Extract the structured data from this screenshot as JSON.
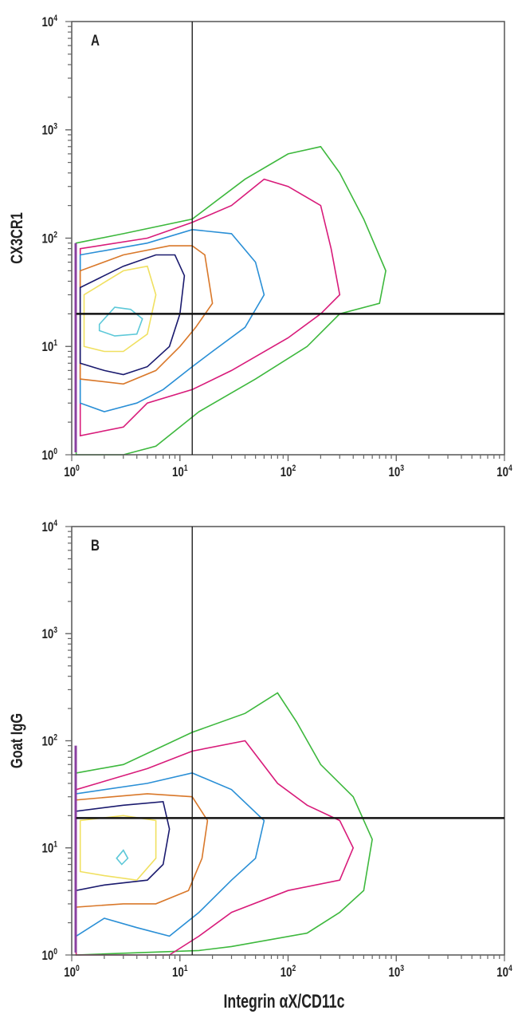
{
  "chart_data": [
    {
      "type": "contour",
      "panel_label": "A",
      "xlabel": "",
      "ylabel": "CX3CR1",
      "x_scale": "log",
      "y_scale": "log",
      "xlim": [
        1,
        10000
      ],
      "ylim": [
        1,
        10000
      ],
      "x_ticks": [
        {
          "base": "10",
          "exp": "0",
          "value": 1
        },
        {
          "base": "10",
          "exp": "1",
          "value": 10
        },
        {
          "base": "10",
          "exp": "2",
          "value": 100
        },
        {
          "base": "10",
          "exp": "3",
          "value": 1000
        },
        {
          "base": "10",
          "exp": "4",
          "value": 10000
        }
      ],
      "y_ticks": [
        {
          "base": "10",
          "exp": "0",
          "value": 1
        },
        {
          "base": "10",
          "exp": "1",
          "value": 10
        },
        {
          "base": "10",
          "exp": "2",
          "value": 100
        },
        {
          "base": "10",
          "exp": "3",
          "value": 1000
        },
        {
          "base": "10",
          "exp": "4",
          "value": 10000
        }
      ],
      "grid": false,
      "quadrant_gate": {
        "x": 13,
        "y": 20
      },
      "contours": [
        {
          "color": "#3db83d",
          "points": [
            [
              1.1,
              1
            ],
            [
              1.1,
              90
            ],
            [
              3,
              110
            ],
            [
              13,
              150
            ],
            [
              40,
              350
            ],
            [
              100,
              600
            ],
            [
              200,
              700
            ],
            [
              300,
              400
            ],
            [
              500,
              150
            ],
            [
              800,
              50
            ],
            [
              700,
              25
            ],
            [
              300,
              20
            ],
            [
              150,
              10
            ],
            [
              50,
              5
            ],
            [
              15,
              2.5
            ],
            [
              6,
              1.2
            ],
            [
              3,
              1
            ]
          ]
        },
        {
          "color": "#d81b7a",
          "points": [
            [
              1.2,
              1.5
            ],
            [
              1.2,
              80
            ],
            [
              5,
              100
            ],
            [
              13,
              140
            ],
            [
              30,
              200
            ],
            [
              60,
              350
            ],
            [
              100,
              300
            ],
            [
              200,
              200
            ],
            [
              250,
              80
            ],
            [
              300,
              30
            ],
            [
              200,
              20
            ],
            [
              100,
              12
            ],
            [
              30,
              6
            ],
            [
              13,
              4
            ],
            [
              5,
              3
            ],
            [
              3,
              1.8
            ]
          ]
        },
        {
          "color": "#2a8fd6",
          "points": [
            [
              1.2,
              3
            ],
            [
              1.2,
              70
            ],
            [
              5,
              90
            ],
            [
              13,
              120
            ],
            [
              30,
              110
            ],
            [
              50,
              60
            ],
            [
              60,
              30
            ],
            [
              40,
              15
            ],
            [
              20,
              9
            ],
            [
              13,
              6.5
            ],
            [
              7,
              4
            ],
            [
              4,
              3
            ],
            [
              2,
              2.5
            ]
          ]
        },
        {
          "color": "#d9782a",
          "points": [
            [
              1.2,
              5
            ],
            [
              1.2,
              50
            ],
            [
              3,
              70
            ],
            [
              8,
              85
            ],
            [
              13,
              85
            ],
            [
              17,
              70
            ],
            [
              20,
              25
            ],
            [
              14,
              15
            ],
            [
              10,
              10
            ],
            [
              6,
              6
            ],
            [
              3,
              4.5
            ]
          ]
        },
        {
          "color": "#1a1a6e",
          "points": [
            [
              1.2,
              7
            ],
            [
              1.2,
              35
            ],
            [
              3,
              55
            ],
            [
              6,
              70
            ],
            [
              9,
              70
            ],
            [
              11,
              45
            ],
            [
              10,
              20
            ],
            [
              8,
              10
            ],
            [
              5,
              6.5
            ],
            [
              3,
              5.5
            ],
            [
              2,
              6
            ]
          ]
        },
        {
          "color": "#f0e060",
          "points": [
            [
              1.3,
              10
            ],
            [
              1.3,
              30
            ],
            [
              3,
              50
            ],
            [
              5,
              55
            ],
            [
              6,
              30
            ],
            [
              5,
              13
            ],
            [
              3,
              9
            ],
            [
              2,
              9
            ]
          ]
        },
        {
          "color": "#5cc8d8",
          "points": [
            [
              1.8,
              16
            ],
            [
              2.5,
              23
            ],
            [
              3.5,
              22
            ],
            [
              4.5,
              18
            ],
            [
              4,
              13
            ],
            [
              2.5,
              12.5
            ],
            [
              1.8,
              14
            ]
          ]
        }
      ]
    },
    {
      "type": "contour",
      "panel_label": "B",
      "xlabel": "Integrin αX/CD11c",
      "ylabel": "Goat IgG",
      "x_scale": "log",
      "y_scale": "log",
      "xlim": [
        1,
        10000
      ],
      "ylim": [
        1,
        10000
      ],
      "x_ticks": [
        {
          "base": "10",
          "exp": "0",
          "value": 1
        },
        {
          "base": "10",
          "exp": "1",
          "value": 10
        },
        {
          "base": "10",
          "exp": "2",
          "value": 100
        },
        {
          "base": "10",
          "exp": "3",
          "value": 1000
        },
        {
          "base": "10",
          "exp": "4",
          "value": 10000
        }
      ],
      "y_ticks": [
        {
          "base": "10",
          "exp": "0",
          "value": 1
        },
        {
          "base": "10",
          "exp": "1",
          "value": 10
        },
        {
          "base": "10",
          "exp": "2",
          "value": 100
        },
        {
          "base": "10",
          "exp": "3",
          "value": 1000
        },
        {
          "base": "10",
          "exp": "4",
          "value": 10000
        }
      ],
      "grid": false,
      "quadrant_gate": {
        "x": 13,
        "y": 19
      },
      "contours": [
        {
          "color": "#3db83d",
          "points": [
            [
              1.1,
              1
            ],
            [
              1.1,
              50
            ],
            [
              3,
              60
            ],
            [
              13,
              120
            ],
            [
              40,
              180
            ],
            [
              80,
              280
            ],
            [
              120,
              150
            ],
            [
              200,
              60
            ],
            [
              400,
              30
            ],
            [
              600,
              12
            ],
            [
              500,
              4
            ],
            [
              300,
              2.5
            ],
            [
              150,
              1.6
            ],
            [
              30,
              1.2
            ],
            [
              15,
              1.1
            ]
          ]
        },
        {
          "color": "#d81b7a",
          "points": [
            [
              1.1,
              1
            ],
            [
              1.1,
              35
            ],
            [
              5,
              55
            ],
            [
              13,
              80
            ],
            [
              40,
              100
            ],
            [
              80,
              40
            ],
            [
              150,
              25
            ],
            [
              300,
              18
            ],
            [
              400,
              10
            ],
            [
              300,
              5
            ],
            [
              100,
              4
            ],
            [
              30,
              2.5
            ],
            [
              15,
              1.5
            ],
            [
              8,
              1
            ]
          ]
        },
        {
          "color": "#2a8fd6",
          "points": [
            [
              1.1,
              1.5
            ],
            [
              1.1,
              32
            ],
            [
              5,
              40
            ],
            [
              13,
              50
            ],
            [
              30,
              35
            ],
            [
              60,
              18
            ],
            [
              50,
              8
            ],
            [
              30,
              5
            ],
            [
              15,
              2.5
            ],
            [
              8,
              1.5
            ],
            [
              4,
              1.8
            ],
            [
              2,
              2.2
            ]
          ]
        },
        {
          "color": "#d9782a",
          "points": [
            [
              1.1,
              2.8
            ],
            [
              1.1,
              28
            ],
            [
              5,
              32
            ],
            [
              13,
              30
            ],
            [
              18,
              18
            ],
            [
              16,
              8
            ],
            [
              12,
              4
            ],
            [
              6,
              3
            ],
            [
              3,
              3
            ]
          ]
        },
        {
          "color": "#1a1a6e",
          "points": [
            [
              1.1,
              4
            ],
            [
              1.1,
              22
            ],
            [
              3,
              25
            ],
            [
              7,
              27
            ],
            [
              8,
              15
            ],
            [
              7,
              7
            ],
            [
              5,
              5
            ],
            [
              2,
              4.5
            ]
          ]
        },
        {
          "color": "#f0e060",
          "points": [
            [
              1.2,
              6
            ],
            [
              1.2,
              18
            ],
            [
              3,
              20
            ],
            [
              6,
              18
            ],
            [
              6,
              8
            ],
            [
              4,
              5
            ],
            [
              2,
              5.5
            ]
          ]
        },
        {
          "color": "#5cc8d8",
          "points": [
            [
              2.6,
              8
            ],
            [
              3,
              9.5
            ],
            [
              3.3,
              8
            ],
            [
              2.9,
              7
            ]
          ]
        }
      ]
    }
  ]
}
